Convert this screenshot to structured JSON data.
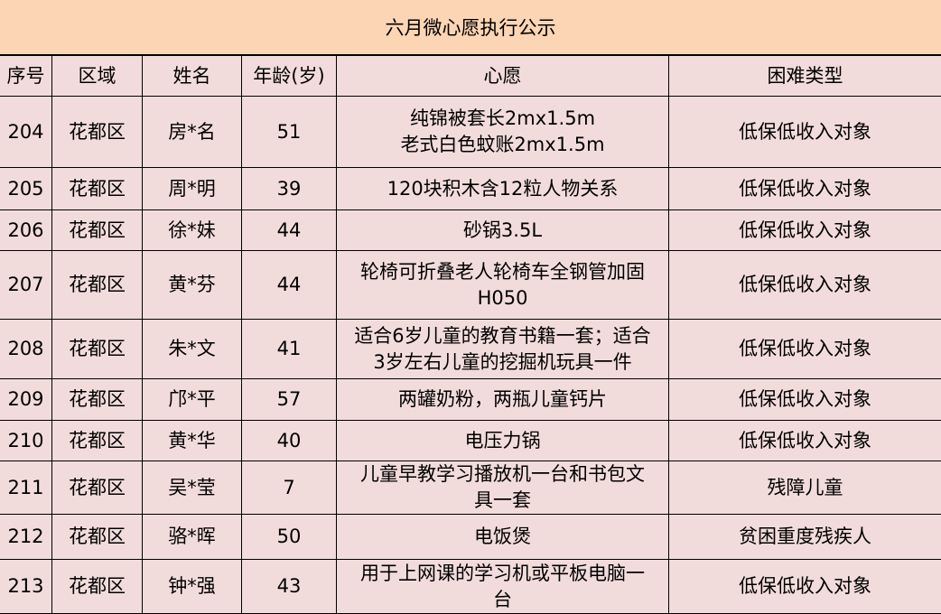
{
  "title": "六月微心愿执行公示",
  "columns": [
    "序号",
    "区域",
    "姓名",
    "年龄(岁)",
    "心愿",
    "困难类型"
  ],
  "rows": [
    {
      "no": "204",
      "area": "花都区",
      "name": "房*名",
      "age": "51",
      "wish": "纯锦被套长2mx1.5m\n老式白色蚊账2mx1.5m",
      "type": "低保低收入对象"
    },
    {
      "no": "205",
      "area": "花都区",
      "name": "周*明",
      "age": "39",
      "wish": "120块积木含12粒人物关系",
      "type": "低保低收入对象"
    },
    {
      "no": "206",
      "area": "花都区",
      "name": "徐*妹",
      "age": "44",
      "wish": "砂锅3.5L",
      "type": "低保低收入对象"
    },
    {
      "no": "207",
      "area": "花都区",
      "name": "黄*芬",
      "age": "44",
      "wish": "轮椅可折叠老人轮椅车全钢管加固\nH050",
      "type": "低保低收入对象"
    },
    {
      "no": "208",
      "area": "花都区",
      "name": "朱*文",
      "age": "41",
      "wish": "适合6岁儿童的教育书籍一套；适合\n3岁左右儿童的挖掘机玩具一件",
      "type": "低保低收入对象"
    },
    {
      "no": "209",
      "area": "花都区",
      "name": "邝*平",
      "age": "57",
      "wish": "两罐奶粉，两瓶儿童钙片",
      "type": "低保低收入对象"
    },
    {
      "no": "210",
      "area": "花都区",
      "name": "黄*华",
      "age": "40",
      "wish": "电压力锅",
      "type": "低保低收入对象"
    },
    {
      "no": "211",
      "area": "花都区",
      "name": "吴*莹",
      "age": "7",
      "wish": "儿童早教学习播放机一台和书包文\n具一套",
      "type": "残障儿童"
    },
    {
      "no": "212",
      "area": "花都区",
      "name": "骆*晖",
      "age": "50",
      "wish": "电饭煲",
      "type": "贫困重度残疾人"
    },
    {
      "no": "213",
      "area": "花都区",
      "name": "钟*强",
      "age": "43",
      "wish": "用于上网课的学习机或平板电脑一\n台",
      "type": "低保低收入对象"
    }
  ],
  "colors": {
    "title_bg": "#fcd5b4",
    "cell_bg": "#f2dcdb",
    "border": "#000000"
  }
}
